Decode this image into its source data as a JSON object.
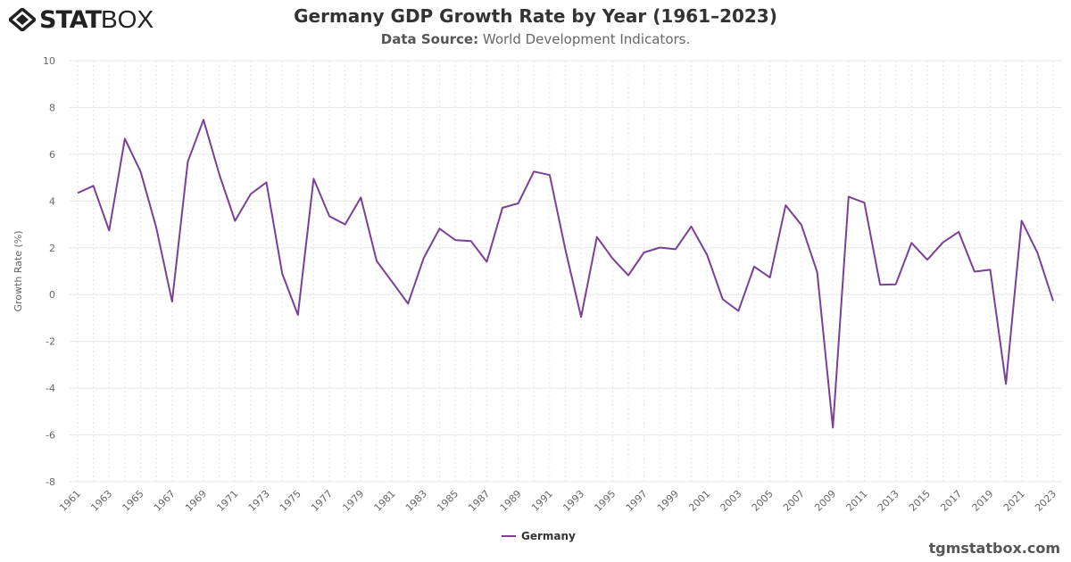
{
  "brand": {
    "logo_bold": "STAT",
    "logo_thin": "BOX"
  },
  "header": {
    "title": "Germany GDP Growth Rate by Year (1961–2023)",
    "source_label": "Data Source:",
    "source_value": "World Development Indicators."
  },
  "footer": {
    "site": "tgmstatbox.com"
  },
  "chart_data": {
    "type": "line",
    "title": "Germany GDP Growth Rate by Year (1961–2023)",
    "ylabel": "Growth Rate (%)",
    "xlabel": "",
    "ylim": [
      -8,
      10
    ],
    "yticks": [
      -8,
      -6,
      -4,
      -2,
      0,
      2,
      4,
      6,
      8,
      10
    ],
    "grid": true,
    "legend": "bottom-center",
    "color": "#7b3f98",
    "x": [
      1961,
      1962,
      1963,
      1964,
      1965,
      1966,
      1967,
      1968,
      1969,
      1970,
      1971,
      1972,
      1973,
      1974,
      1975,
      1976,
      1977,
      1978,
      1979,
      1980,
      1981,
      1982,
      1983,
      1984,
      1985,
      1986,
      1987,
      1988,
      1989,
      1990,
      1991,
      1992,
      1993,
      1994,
      1995,
      1996,
      1997,
      1998,
      1999,
      2000,
      2001,
      2002,
      2003,
      2004,
      2005,
      2006,
      2007,
      2008,
      2009,
      2010,
      2011,
      2012,
      2013,
      2014,
      2015,
      2016,
      2017,
      2018,
      2019,
      2020,
      2021,
      2022,
      2023
    ],
    "series": [
      {
        "name": "Germany",
        "values": [
          4.34,
          4.65,
          2.74,
          6.66,
          5.26,
          2.86,
          -0.3,
          5.68,
          7.47,
          5.14,
          3.15,
          4.3,
          4.8,
          0.9,
          -0.87,
          4.95,
          3.35,
          3.0,
          4.15,
          1.44,
          0.53,
          -0.39,
          1.57,
          2.82,
          2.33,
          2.29,
          1.4,
          3.71,
          3.9,
          5.26,
          5.11,
          1.92,
          -0.96,
          2.46,
          1.54,
          0.82,
          1.8,
          2.01,
          1.94,
          2.91,
          1.7,
          -0.2,
          -0.7,
          1.2,
          0.73,
          3.82,
          2.98,
          0.96,
          -5.69,
          4.18,
          3.93,
          0.42,
          0.44,
          2.21,
          1.49,
          2.23,
          2.68,
          0.98,
          1.06,
          -3.82,
          3.16,
          1.79,
          -0.27
        ]
      }
    ]
  }
}
